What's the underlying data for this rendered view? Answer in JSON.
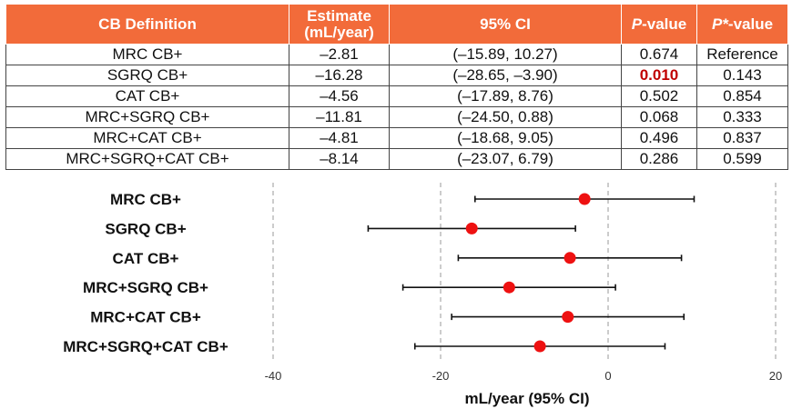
{
  "table": {
    "headers": [
      {
        "label": "CB Definition",
        "italic": "",
        "suffix": ""
      },
      {
        "label": "Estimate\n(mL/year)",
        "italic": "",
        "suffix": ""
      },
      {
        "label": "95% CI",
        "italic": "",
        "suffix": ""
      },
      {
        "label": "",
        "italic": "P",
        "suffix": "-value"
      },
      {
        "label": "",
        "italic": "P*",
        "suffix": "-value"
      }
    ],
    "rows": [
      {
        "definition": "MRC CB+",
        "estimate": "–2.81",
        "ci": "(–15.89, 10.27)",
        "p": "0.674",
        "p_star": "Reference",
        "p_significant": false
      },
      {
        "definition": "SGRQ CB+",
        "estimate": "–16.28",
        "ci": "(–28.65, –3.90)",
        "p": "0.010",
        "p_star": "0.143",
        "p_significant": true
      },
      {
        "definition": "CAT CB+",
        "estimate": "–4.56",
        "ci": "(–17.89, 8.76)",
        "p": "0.502",
        "p_star": "0.854",
        "p_significant": false
      },
      {
        "definition": "MRC+SGRQ CB+",
        "estimate": "–11.81",
        "ci": "(–24.50, 0.88)",
        "p": "0.068",
        "p_star": "0.333",
        "p_significant": false
      },
      {
        "definition": "MRC+CAT CB+",
        "estimate": "–4.81",
        "ci": "(–18.68, 9.05)",
        "p": "0.496",
        "p_star": "0.837",
        "p_significant": false
      },
      {
        "definition": "MRC+SGRQ+CAT CB+",
        "estimate": "–8.14",
        "ci": "(–23.07, 6.79)",
        "p": "0.286",
        "p_star": "0.599",
        "p_significant": false
      }
    ]
  },
  "colors": {
    "header_bg": "#f26b3a",
    "point": "#ee1111",
    "significant_text": "#c00000"
  },
  "chart_data": {
    "type": "forest",
    "categories": [
      "MRC CB+",
      "SGRQ CB+",
      "CAT CB+",
      "MRC+SGRQ CB+",
      "MRC+CAT CB+",
      "MRC+SGRQ+CAT CB+"
    ],
    "estimates": [
      -2.81,
      -16.28,
      -4.56,
      -11.81,
      -4.81,
      -8.14
    ],
    "ci_lower": [
      -15.89,
      -28.65,
      -17.89,
      -24.5,
      -18.68,
      -23.07
    ],
    "ci_upper": [
      10.27,
      -3.9,
      8.76,
      0.88,
      9.05,
      6.79
    ],
    "xlabel": "mL/year (95% CI)",
    "xlim": [
      -40,
      20
    ],
    "xticks": [
      -40,
      -20,
      0,
      20
    ],
    "grid": "dashed vertical at ticks"
  }
}
